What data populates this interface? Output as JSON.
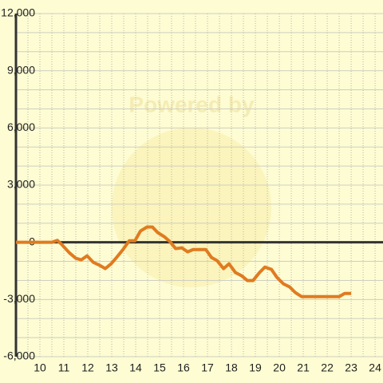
{
  "chart_data": {
    "type": "line",
    "watermark": "Powered by",
    "x": [
      9,
      10.5,
      10.73,
      10.9,
      11.23,
      11.5,
      11.73,
      11.97,
      12.23,
      12.5,
      12.73,
      12.97,
      13.2,
      13.47,
      13.73,
      13.97,
      14.2,
      14.47,
      14.7,
      14.93,
      15.2,
      15.43,
      15.67,
      15.93,
      16.17,
      16.4,
      16.67,
      16.93,
      17.17,
      17.4,
      17.67,
      17.9,
      18.17,
      18.43,
      18.67,
      18.9,
      19.17,
      19.4,
      19.67,
      19.9,
      20.17,
      20.43,
      20.67,
      20.93,
      21.5,
      22,
      22.5,
      22.73,
      23
    ],
    "series": [
      {
        "color": "#e07b20",
        "values": [
          0,
          0,
          100,
          -100,
          -550,
          -840,
          -920,
          -710,
          -1050,
          -1210,
          -1380,
          -1130,
          -800,
          -380,
          80,
          80,
          590,
          800,
          800,
          500,
          290,
          40,
          -330,
          -290,
          -500,
          -380,
          -380,
          -380,
          -800,
          -960,
          -1380,
          -1130,
          -1590,
          -1760,
          -2010,
          -2010,
          -1590,
          -1300,
          -1420,
          -1840,
          -2180,
          -2340,
          -2640,
          -2850,
          -2850,
          -2850,
          -2850,
          -2680,
          -2680
        ]
      }
    ],
    "xlim": [
      9,
      24.33
    ],
    "ylim": [
      -6000,
      12000
    ],
    "xticks": [
      10,
      11,
      12,
      13,
      14,
      15,
      16,
      17,
      18,
      19,
      20,
      21,
      22,
      23,
      24
    ],
    "yticks": [
      {
        "value": -6000,
        "label": "-6,000"
      },
      {
        "value": -3000,
        "label": "-3,000"
      },
      0,
      {
        "value": 3000,
        "label": "3,000"
      },
      {
        "value": 6000,
        "label": "6,000"
      },
      {
        "value": 9000,
        "label": "9,000"
      },
      {
        "value": 12000,
        "label": "12,000"
      }
    ],
    "xminorticks": [
      9.5,
      10.5,
      11.5,
      12.5,
      13.5,
      14.5,
      15.5,
      16.5,
      17.5,
      18.5,
      19.5,
      20.5,
      21.5,
      22.5,
      23.5
    ],
    "yminorticks": [
      -5000,
      -4000,
      -2000,
      -1000,
      1000,
      2000,
      4000,
      5000,
      7000,
      8000,
      10000,
      11000
    ],
    "grid": true
  }
}
